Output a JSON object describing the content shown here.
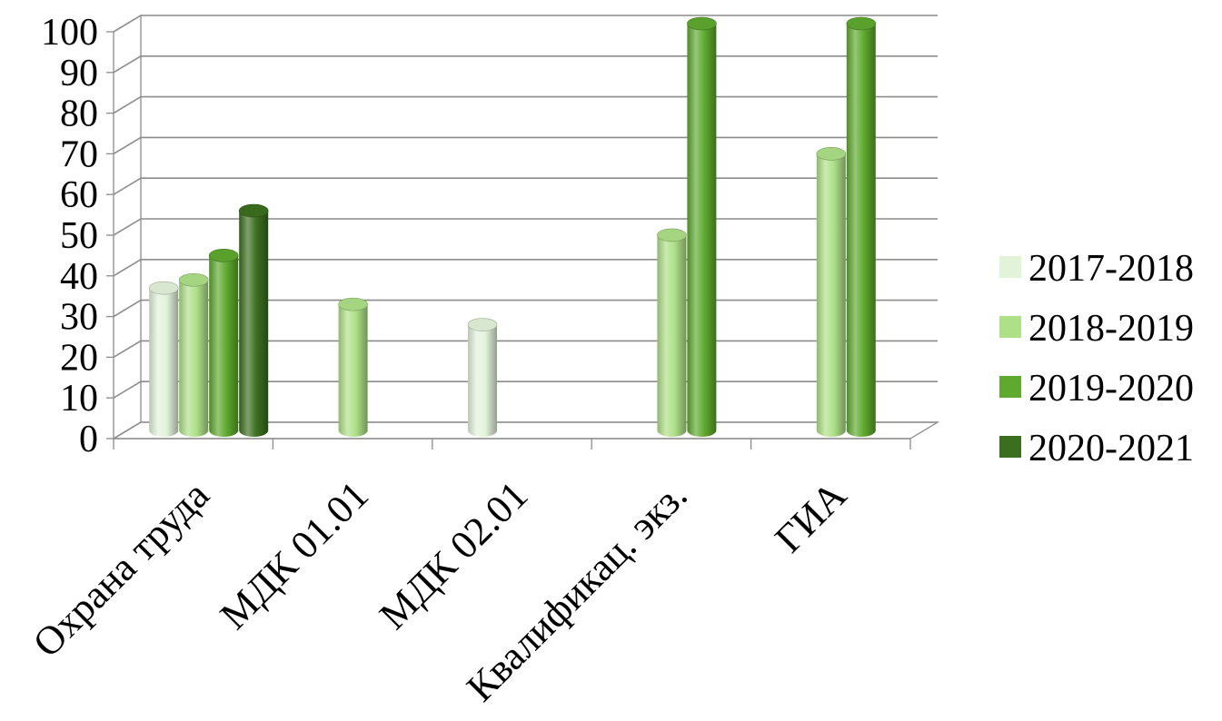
{
  "chart_data": {
    "type": "bar",
    "style": "3d-cylinder",
    "title": "",
    "xlabel": "",
    "ylabel": "",
    "categories": [
      "Охрана труда",
      "МДК 01.01",
      "МДК 02.01",
      "Квалификац. экз.",
      "ГИА"
    ],
    "series": [
      {
        "name": "2017-2018",
        "color": "#e3f3da",
        "values": [
          35,
          null,
          26,
          null,
          null
        ]
      },
      {
        "name": "2018-2019",
        "color": "#aee087",
        "values": [
          37,
          31,
          null,
          48,
          68
        ]
      },
      {
        "name": "2019-2020",
        "color": "#5ea92e",
        "values": [
          43,
          null,
          null,
          100,
          100
        ]
      },
      {
        "name": "2020-2021",
        "color": "#3b6f1f",
        "values": [
          54,
          null,
          null,
          null,
          null
        ]
      }
    ],
    "yticks": [
      "0",
      "10",
      "20",
      "30",
      "40",
      "50",
      "60",
      "70",
      "80",
      "90",
      "100"
    ],
    "ylim": [
      0,
      100
    ],
    "grid": true,
    "legend": "right"
  }
}
